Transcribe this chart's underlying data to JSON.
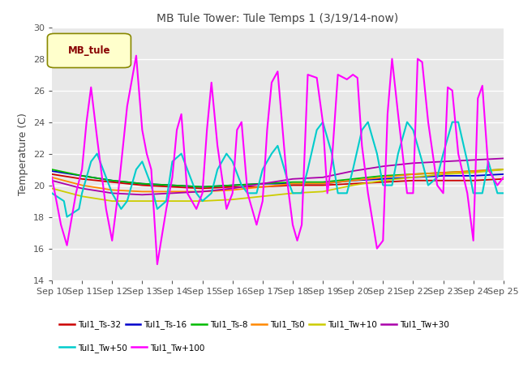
{
  "title": "MB Tule Tower: Tule Temps 1 (3/19/14-now)",
  "ylabel": "Temperature (C)",
  "ylim": [
    14,
    30
  ],
  "yticks": [
    14,
    16,
    18,
    20,
    22,
    24,
    26,
    28,
    30
  ],
  "xtick_labels": [
    "Sep 10",
    "Sep 11",
    "Sep 12",
    "Sep 13",
    "Sep 14",
    "Sep 15",
    "Sep 16",
    "Sep 17",
    "Sep 18",
    "Sep 19",
    "Sep 20",
    "Sep 21",
    "Sep 22",
    "Sep 23",
    "Sep 24",
    "Sep 25"
  ],
  "legend_box_label": "MB_tule",
  "figure_bg": "#ffffff",
  "plot_bg": "#e8e8e8",
  "grid_color": "#ffffff",
  "series": [
    {
      "name": "Tul1_Ts-32",
      "color": "#cc0000",
      "lw": 1.3,
      "x": [
        0,
        1,
        2,
        3,
        4,
        5,
        6,
        7,
        8,
        9,
        10,
        11,
        12,
        13,
        14,
        15
      ],
      "y": [
        20.7,
        20.4,
        20.2,
        20.0,
        19.9,
        19.8,
        19.9,
        19.9,
        20.0,
        20.0,
        20.1,
        20.2,
        20.3,
        20.3,
        20.3,
        20.4
      ]
    },
    {
      "name": "Tul1_Ts-16",
      "color": "#0000cc",
      "lw": 1.3,
      "x": [
        0,
        1,
        2,
        3,
        4,
        5,
        6,
        7,
        8,
        9,
        10,
        11,
        12,
        13,
        14,
        15
      ],
      "y": [
        20.9,
        20.6,
        20.3,
        20.1,
        20.0,
        19.9,
        20.0,
        20.1,
        20.1,
        20.1,
        20.3,
        20.4,
        20.5,
        20.6,
        20.6,
        20.7
      ]
    },
    {
      "name": "Tul1_Ts-8",
      "color": "#00bb00",
      "lw": 1.3,
      "x": [
        0,
        1,
        2,
        3,
        4,
        5,
        6,
        7,
        8,
        9,
        10,
        11,
        12,
        13,
        14,
        15
      ],
      "y": [
        21.0,
        20.6,
        20.3,
        20.1,
        20.0,
        19.9,
        20.0,
        20.1,
        20.2,
        20.2,
        20.4,
        20.6,
        20.7,
        20.8,
        20.9,
        21.0
      ]
    },
    {
      "name": "Tul1_Ts0",
      "color": "#ff8800",
      "lw": 1.3,
      "x": [
        0,
        1,
        2,
        3,
        4,
        5,
        6,
        7,
        8,
        9,
        10,
        11,
        12,
        13,
        14,
        15
      ],
      "y": [
        20.5,
        20.0,
        19.7,
        19.6,
        19.6,
        19.6,
        19.7,
        19.9,
        20.1,
        20.1,
        20.3,
        20.5,
        20.7,
        20.8,
        20.9,
        21.0
      ]
    },
    {
      "name": "Tul1_Tw+10",
      "color": "#cccc00",
      "lw": 1.3,
      "x": [
        0,
        1,
        2,
        3,
        4,
        5,
        6,
        7,
        8,
        9,
        10,
        11,
        12,
        13,
        14,
        15
      ],
      "y": [
        19.8,
        19.3,
        19.0,
        19.0,
        19.0,
        19.0,
        19.1,
        19.3,
        19.5,
        19.6,
        20.0,
        20.3,
        20.5,
        20.7,
        20.8,
        21.0
      ]
    },
    {
      "name": "Tul1_Tw+30",
      "color": "#aa00aa",
      "lw": 1.3,
      "x": [
        0,
        1,
        2,
        3,
        4,
        5,
        6,
        7,
        8,
        9,
        10,
        11,
        12,
        13,
        14,
        15
      ],
      "y": [
        20.3,
        19.8,
        19.5,
        19.4,
        19.5,
        19.6,
        19.8,
        20.1,
        20.4,
        20.5,
        20.9,
        21.2,
        21.4,
        21.5,
        21.6,
        21.7
      ]
    },
    {
      "name": "Tul1_Tw+50",
      "color": "#00cccc",
      "lw": 1.5,
      "x": [
        0,
        0.4,
        0.5,
        0.9,
        1.0,
        1.3,
        1.5,
        1.8,
        2.0,
        2.3,
        2.5,
        2.8,
        3.0,
        3.3,
        3.5,
        3.8,
        4.0,
        4.3,
        4.5,
        4.8,
        5.0,
        5.3,
        5.5,
        5.8,
        6.0,
        6.3,
        6.5,
        6.8,
        7.0,
        7.3,
        7.5,
        7.8,
        8.0,
        8.3,
        8.5,
        8.8,
        9.0,
        9.3,
        9.5,
        9.8,
        10.0,
        10.3,
        10.5,
        10.8,
        11.0,
        11.3,
        11.5,
        11.8,
        12.0,
        12.3,
        12.5,
        12.8,
        13.0,
        13.3,
        13.5,
        13.8,
        14.0,
        14.3,
        14.5,
        14.8,
        15.0
      ],
      "y": [
        19.5,
        19.0,
        18.0,
        18.5,
        19.5,
        21.5,
        22.0,
        20.5,
        19.5,
        18.5,
        19.0,
        21.0,
        21.5,
        20.0,
        18.5,
        19.0,
        21.5,
        22.0,
        21.0,
        19.5,
        19.0,
        19.5,
        21.0,
        22.0,
        21.5,
        20.0,
        19.5,
        19.5,
        21.0,
        22.0,
        22.5,
        20.5,
        19.5,
        19.5,
        21.0,
        23.5,
        24.0,
        22.0,
        19.5,
        19.5,
        21.0,
        23.5,
        24.0,
        22.0,
        20.0,
        20.0,
        22.0,
        24.0,
        23.5,
        21.5,
        20.0,
        20.5,
        22.0,
        24.0,
        24.0,
        21.5,
        19.5,
        19.5,
        21.5,
        19.5,
        19.5
      ]
    },
    {
      "name": "Tul1_Tw+100",
      "color": "#ff00ff",
      "lw": 1.5,
      "x": [
        0,
        0.3,
        0.5,
        0.8,
        1.0,
        1.15,
        1.3,
        1.5,
        1.8,
        2.0,
        2.2,
        2.5,
        2.8,
        3.0,
        3.15,
        3.3,
        3.5,
        3.8,
        4.0,
        4.15,
        4.3,
        4.5,
        4.8,
        5.0,
        5.15,
        5.3,
        5.5,
        5.8,
        6.0,
        6.15,
        6.3,
        6.5,
        6.8,
        7.0,
        7.15,
        7.3,
        7.5,
        7.8,
        8.0,
        8.15,
        8.3,
        8.5,
        8.8,
        9.0,
        9.15,
        9.3,
        9.5,
        9.8,
        10.0,
        10.15,
        10.3,
        10.5,
        10.8,
        11.0,
        11.15,
        11.3,
        11.5,
        11.8,
        12.0,
        12.15,
        12.3,
        12.5,
        12.8,
        13.0,
        13.15,
        13.3,
        13.5,
        13.8,
        14.0,
        14.15,
        14.3,
        14.5,
        14.8,
        15.0
      ],
      "y": [
        20.5,
        17.5,
        16.2,
        19.5,
        21.0,
        24.0,
        26.2,
        23.0,
        18.5,
        16.5,
        19.5,
        25.0,
        28.2,
        23.5,
        22.0,
        21.0,
        15.0,
        18.5,
        20.5,
        23.5,
        24.5,
        19.5,
        18.5,
        19.5,
        23.5,
        26.5,
        22.5,
        18.5,
        19.5,
        23.5,
        24.0,
        19.5,
        17.5,
        19.0,
        23.5,
        26.5,
        27.2,
        20.5,
        17.5,
        16.5,
        17.5,
        27.0,
        26.8,
        24.0,
        19.5,
        21.5,
        27.0,
        26.7,
        27.0,
        26.8,
        22.5,
        19.5,
        16.0,
        16.5,
        24.5,
        28.0,
        24.5,
        19.5,
        19.5,
        28.0,
        27.8,
        24.0,
        20.0,
        19.5,
        26.2,
        26.0,
        22.0,
        19.5,
        16.5,
        25.5,
        26.3,
        21.0,
        20.0,
        20.5
      ]
    }
  ]
}
